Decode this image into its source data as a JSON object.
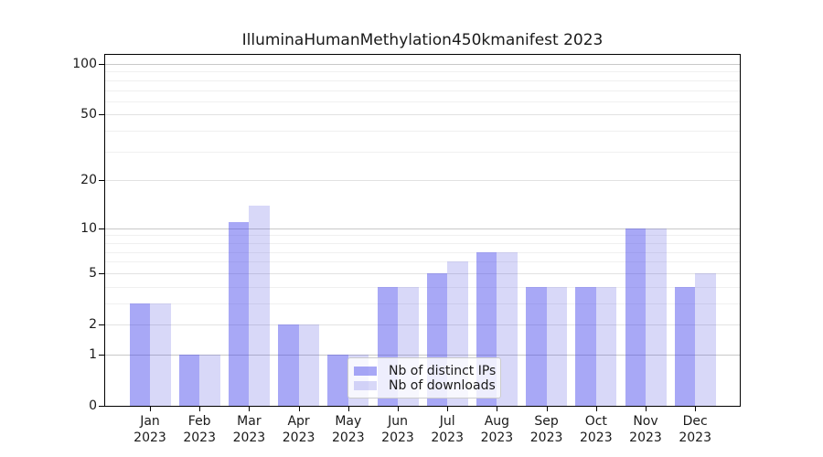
{
  "chart_data": {
    "type": "bar",
    "title": "IlluminaHumanMethylation450kmanifest 2023",
    "categories": [
      "Jan 2023",
      "Feb 2023",
      "Mar 2023",
      "Apr 2023",
      "May 2023",
      "Jun 2023",
      "Jul 2023",
      "Aug 2023",
      "Sep 2023",
      "Oct 2023",
      "Nov 2023",
      "Dec 2023"
    ],
    "series": [
      {
        "name": "Nb of distinct IPs",
        "color": "rgba(62,62,236,0.45)",
        "values": [
          3,
          1,
          11,
          2,
          1,
          4,
          5,
          7,
          4,
          4,
          10,
          4
        ]
      },
      {
        "name": "Nb of downloads",
        "color": "rgba(60,60,220,0.2)",
        "values": [
          3,
          1,
          14,
          2,
          1,
          4,
          6,
          7,
          4,
          4,
          10,
          5
        ]
      }
    ],
    "xlabel": "",
    "ylabel": "",
    "y_axis": {
      "scale": "log1p",
      "tick_values": [
        0,
        1,
        2,
        5,
        10,
        20,
        50,
        100
      ],
      "decade_gridlines": [
        1,
        10,
        100
      ],
      "minor_gridlines": [
        3,
        4,
        6,
        7,
        8,
        9,
        30,
        40,
        60,
        70,
        80,
        90
      ],
      "ylim": [
        0,
        100
      ]
    },
    "grid": true,
    "legend_position": "inside-bottom-center"
  }
}
